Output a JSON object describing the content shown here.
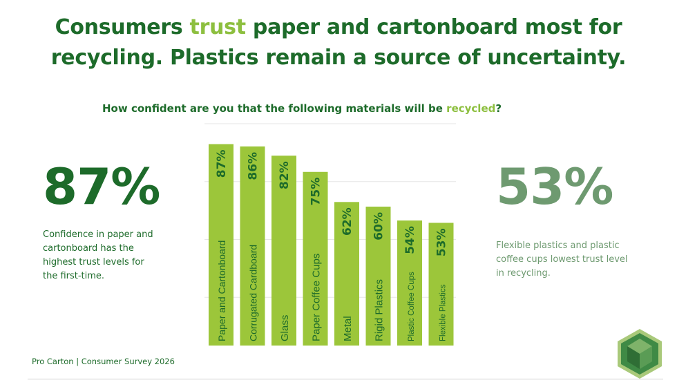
{
  "headline": {
    "line1_pre": "Consumers ",
    "line1_highlight": "trust",
    "line1_post": " paper and cartonboard most for",
    "line2": "recycling. Plastics remain a source of uncertainty."
  },
  "question": {
    "pre": "How confident are you that the following materials will be ",
    "highlight": "recycled",
    "post": "?"
  },
  "left_stat": {
    "value": "87%",
    "description": "Confidence in paper and cartonboard has the highest trust levels for the first-time."
  },
  "right_stat": {
    "value": "53%",
    "description": "Flexible plastics and plastic coffee cups lowest trust level in recycling."
  },
  "source": "Pro Carton | Consumer Survey 2026",
  "logo_icon": "pro-carton-hexagon-logo",
  "colors": {
    "brand_dark_green": "#1d6b2a",
    "accent_lime": "#8dbf3f",
    "muted_green": "#6e9a70",
    "bar_fill": "#9cc63a"
  },
  "chart_data": {
    "type": "bar",
    "categories": [
      "Paper and Cartonboard",
      "Corrugated Cardboard",
      "Glass",
      "Paper Coffee Cups",
      "Metal",
      "Rigid Plastics",
      "Plastic Coffee Cups",
      "Flexible Plastics"
    ],
    "values": [
      87,
      86,
      82,
      75,
      62,
      60,
      54,
      53
    ],
    "value_labels": [
      "87%",
      "86%",
      "82%",
      "75%",
      "62%",
      "60%",
      "54%",
      "53%"
    ],
    "title": "How confident are you that the following materials will be recycled?",
    "ylim": [
      0,
      100
    ],
    "grid": true,
    "legend": "none"
  }
}
